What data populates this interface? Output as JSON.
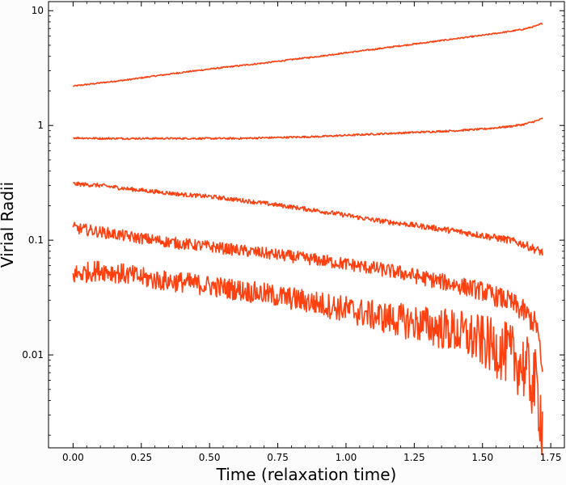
{
  "chart_data": {
    "type": "line",
    "xlabel": "Time (relaxation time)",
    "ylabel": "Virial Radii",
    "xlim": [
      -0.09,
      1.8
    ],
    "ylim": [
      0.00155,
      12
    ],
    "yscale": "log",
    "xticks": [
      "0.00",
      "0.25",
      "0.50",
      "0.75",
      "1.00",
      "1.25",
      "1.50",
      "1.75"
    ],
    "yticks": [
      "0.01",
      "0.1",
      "1",
      "10"
    ],
    "line_color": "#ff4010",
    "grid": false,
    "x": [
      0.0,
      0.1,
      0.2,
      0.3,
      0.4,
      0.5,
      0.6,
      0.7,
      0.8,
      0.9,
      1.0,
      1.1,
      1.2,
      1.3,
      1.4,
      1.5,
      1.6,
      1.65,
      1.7,
      1.72
    ],
    "series": [
      {
        "values": [
          2.2,
          2.35,
          2.5,
          2.7,
          2.9,
          3.1,
          3.3,
          3.5,
          3.75,
          4.0,
          4.3,
          4.6,
          4.95,
          5.3,
          5.7,
          6.1,
          6.6,
          6.9,
          7.4,
          7.8
        ]
      },
      {
        "values": [
          0.78,
          0.77,
          0.77,
          0.77,
          0.77,
          0.77,
          0.77,
          0.78,
          0.79,
          0.8,
          0.82,
          0.84,
          0.86,
          0.88,
          0.9,
          0.93,
          0.98,
          1.02,
          1.1,
          1.15
        ]
      },
      {
        "values": [
          0.31,
          0.3,
          0.28,
          0.265,
          0.25,
          0.24,
          0.225,
          0.21,
          0.195,
          0.18,
          0.165,
          0.15,
          0.14,
          0.13,
          0.12,
          0.11,
          0.1,
          0.092,
          0.082,
          0.078
        ]
      },
      {
        "values": [
          0.128,
          0.118,
          0.108,
          0.1,
          0.093,
          0.088,
          0.082,
          0.077,
          0.072,
          0.067,
          0.062,
          0.057,
          0.052,
          0.046,
          0.041,
          0.036,
          0.029,
          0.024,
          0.018,
          0.0065
        ]
      },
      {
        "values": [
          0.05,
          0.055,
          0.05,
          0.045,
          0.043,
          0.04,
          0.037,
          0.034,
          0.031,
          0.028,
          0.025,
          0.022,
          0.02,
          0.018,
          0.016,
          0.013,
          0.01,
          0.008,
          0.005,
          0.0025
        ]
      }
    ]
  }
}
